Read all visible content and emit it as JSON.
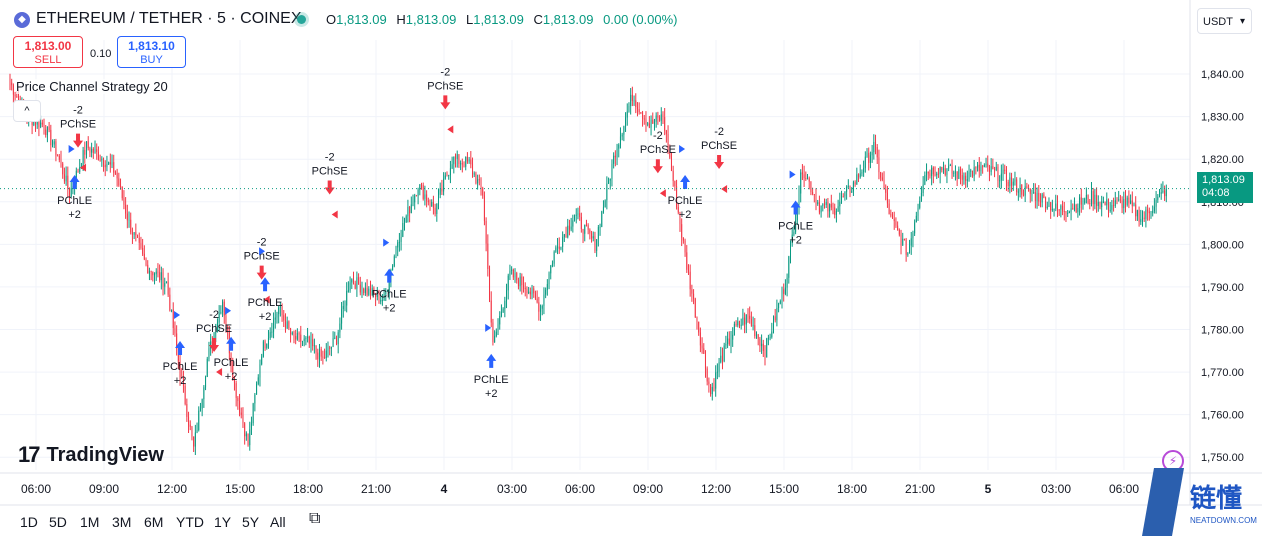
{
  "header": {
    "symbol_title": "ETHEREUM / TETHER · 5 · COINEX",
    "symbol_icon": "ethereum-icon",
    "ohlc": {
      "o_label": "O",
      "o_value": "1,813.09",
      "h_label": "H",
      "h_value": "1,813.09",
      "l_label": "L",
      "l_value": "1,813.09",
      "c_label": "C",
      "c_value": "1,813.09",
      "change": "0.00 (0.00%)"
    }
  },
  "trade": {
    "sell_price": "1,813.00",
    "sell_label": "SELL",
    "spread": "0.10",
    "buy_price": "1,813.10",
    "buy_label": "BUY"
  },
  "strategy_label": "Price Channel Strategy 20",
  "collapse_glyph": "^",
  "currency": {
    "value": "USDT"
  },
  "last_price": {
    "value": "1,813.09",
    "countdown": "04:08"
  },
  "price_axis": {
    "ticks": [
      "1,840.00",
      "1,830.00",
      "1,820.00",
      "1,810.00",
      "1,800.00",
      "1,790.00",
      "1,780.00",
      "1,770.00",
      "1,760.00",
      "1,750.00"
    ]
  },
  "time_axis": {
    "ticks": [
      {
        "label": "06:00",
        "bold": false
      },
      {
        "label": "09:00",
        "bold": false
      },
      {
        "label": "12:00",
        "bold": false
      },
      {
        "label": "15:00",
        "bold": false
      },
      {
        "label": "18:00",
        "bold": false
      },
      {
        "label": "21:00",
        "bold": false
      },
      {
        "label": "4",
        "bold": true
      },
      {
        "label": "03:00",
        "bold": false
      },
      {
        "label": "06:00",
        "bold": false
      },
      {
        "label": "09:00",
        "bold": false
      },
      {
        "label": "12:00",
        "bold": false
      },
      {
        "label": "15:00",
        "bold": false
      },
      {
        "label": "18:00",
        "bold": false
      },
      {
        "label": "21:00",
        "bold": false
      },
      {
        "label": "5",
        "bold": true
      },
      {
        "label": "03:00",
        "bold": false
      },
      {
        "label": "06:00",
        "bold": false
      }
    ]
  },
  "signals": [
    {
      "type": "short",
      "line1": "-2",
      "line2": "PChSE",
      "price": 1826
    },
    {
      "type": "long",
      "line1": "PChLE",
      "line2": "+2",
      "price": 1813
    },
    {
      "type": "short",
      "line1": "-2",
      "line2": "PChSE",
      "price": 1778
    },
    {
      "type": "long",
      "line1": "PChLE",
      "line2": "+2",
      "price": 1774
    },
    {
      "type": "long",
      "line1": "PChLE",
      "line2": "+2",
      "price": 1775
    },
    {
      "type": "short",
      "line1": "-2",
      "line2": "PChSE",
      "price": 1795
    },
    {
      "type": "long",
      "line1": "PChLE",
      "line2": "+2",
      "price": 1789
    },
    {
      "type": "short",
      "line1": "-2",
      "line2": "PChSE",
      "price": 1815
    },
    {
      "type": "long",
      "line1": "PChLE",
      "line2": "+2",
      "price": 1791
    },
    {
      "type": "short",
      "line1": "-2",
      "line2": "PChSE",
      "price": 1835
    },
    {
      "type": "long",
      "line1": "PChLE",
      "line2": "+2",
      "price": 1771
    },
    {
      "type": "short",
      "line1": "-2",
      "line2": "PChSE",
      "price": 1820
    },
    {
      "type": "long",
      "line1": "PChLE",
      "line2": "+2",
      "price": 1813
    },
    {
      "type": "short",
      "line1": "-2",
      "line2": "PChSE",
      "price": 1821
    },
    {
      "type": "long",
      "line1": "PChLE",
      "line2": "+2",
      "price": 1807
    }
  ],
  "chart_data": {
    "type": "candlestick",
    "instrument": "ETHEREUM / TETHER",
    "interval": "5",
    "exchange": "COINEX",
    "ylim": [
      1747,
      1848
    ],
    "last_price": 1813.09,
    "grid": true,
    "close_path": [
      [
        0,
        1838
      ],
      [
        10,
        1830
      ],
      [
        20,
        1828
      ],
      [
        28,
        1821
      ],
      [
        35,
        1812
      ],
      [
        45,
        1823
      ],
      [
        55,
        1820
      ],
      [
        62,
        1817
      ],
      [
        70,
        1805
      ],
      [
        80,
        1795
      ],
      [
        92,
        1791
      ],
      [
        100,
        1770
      ],
      [
        108,
        1752
      ],
      [
        116,
        1773
      ],
      [
        125,
        1787
      ],
      [
        132,
        1767
      ],
      [
        140,
        1753
      ],
      [
        148,
        1775
      ],
      [
        158,
        1785
      ],
      [
        166,
        1778
      ],
      [
        175,
        1777
      ],
      [
        184,
        1773
      ],
      [
        192,
        1778
      ],
      [
        200,
        1792
      ],
      [
        210,
        1789
      ],
      [
        220,
        1787
      ],
      [
        228,
        1801
      ],
      [
        240,
        1814
      ],
      [
        250,
        1808
      ],
      [
        260,
        1820
      ],
      [
        270,
        1819
      ],
      [
        278,
        1812
      ],
      [
        284,
        1776
      ],
      [
        294,
        1793
      ],
      [
        304,
        1790
      ],
      [
        312,
        1785
      ],
      [
        320,
        1798
      ],
      [
        332,
        1807
      ],
      [
        344,
        1800
      ],
      [
        356,
        1822
      ],
      [
        366,
        1835
      ],
      [
        376,
        1828
      ],
      [
        384,
        1830
      ],
      [
        392,
        1810
      ],
      [
        398,
        1795
      ],
      [
        405,
        1780
      ],
      [
        412,
        1765
      ],
      [
        418,
        1773
      ],
      [
        426,
        1780
      ],
      [
        434,
        1783
      ],
      [
        444,
        1775
      ],
      [
        456,
        1791
      ],
      [
        466,
        1818
      ],
      [
        476,
        1809
      ],
      [
        484,
        1808
      ],
      [
        496,
        1814
      ],
      [
        508,
        1823
      ],
      [
        518,
        1806
      ],
      [
        528,
        1798
      ],
      [
        538,
        1817
      ],
      [
        548,
        1818
      ],
      [
        560,
        1816
      ],
      [
        572,
        1818
      ],
      [
        584,
        1816
      ],
      [
        594,
        1813
      ],
      [
        606,
        1811
      ],
      [
        616,
        1808
      ],
      [
        626,
        1809
      ],
      [
        636,
        1811
      ],
      [
        646,
        1809
      ],
      [
        656,
        1810
      ],
      [
        666,
        1806
      ],
      [
        672,
        1809
      ],
      [
        680,
        1813
      ]
    ],
    "signal_indices": [
      40,
      38,
      120,
      100,
      130,
      148,
      150,
      188,
      223,
      256,
      283,
      381,
      397,
      417,
      462
    ]
  }
}
